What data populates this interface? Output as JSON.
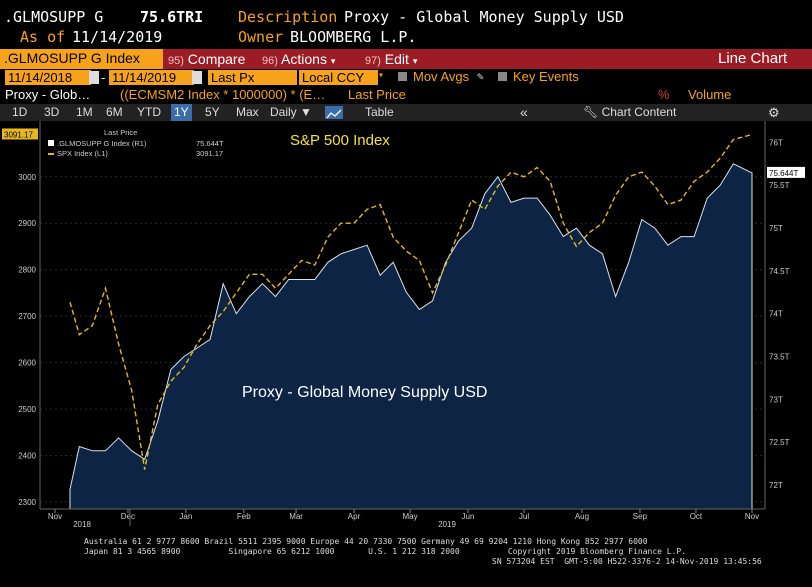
{
  "header": {
    "ticker": ".GLMOSUPP G",
    "value": "75.6TRI",
    "as_of_label": "As of",
    "as_of_date": "11/14/2019",
    "description_label": "Description",
    "description": "Proxy - Global Money Supply USD",
    "owner_label": "Owner",
    "owner": "BLOOMBERG L.P."
  },
  "menubar": {
    "index_label": ".GLMOSUPP G Index",
    "compare_num": "95)",
    "compare_label": "Compare",
    "actions_num": "96)",
    "actions_label": "Actions",
    "edit_num": "97)",
    "edit_label": "Edit",
    "chart_type": "Line Chart",
    "colors": {
      "bar": "#9b1c24",
      "accent": "#f7a21b"
    }
  },
  "controls": {
    "start_date": "11/14/2018",
    "end_date": "11/14/2019",
    "price_field": "Last Px",
    "currency": "Local CCY",
    "mov_avgs": "Mov Avgs",
    "key_events": "Key Events",
    "series_name": "Proxy - Glob…",
    "formula": "((ECMSM2 Index * 1000000) * (E…",
    "last_price": "Last Price",
    "percent": "%",
    "volume": "Volume"
  },
  "toolbar": {
    "periods": [
      "1D",
      "3D",
      "1M",
      "6M",
      "YTD",
      "1Y",
      "5Y",
      "Max"
    ],
    "selected_period": "1Y",
    "frequency": "Daily",
    "table_label": "Table",
    "chart_content": "Chart Content"
  },
  "legend": {
    "header": "Last Price",
    "row1_name": ".GLMOSUPP G Index (R1)",
    "row1_value": "75.644T",
    "row2_name": "SPX Index (L1)",
    "row2_value": "3091.17"
  },
  "footer": {
    "line1": "Australia 61 2 9777 8600 Brazil 5511 2395 9000 Europe 44 20 7330 7500 Germany 49 69 9204 1210 Hong Kong 852 2977 6000",
    "line2": "Japan 81 3 4565 8900          Singapore 65 6212 1000       U.S. 1 212 318 2000          Copyright 2019 Bloomberg Finance L.P.",
    "line3": "SN 573204 EST  GMT-5:00 H522-3376-2 14-Nov-2019 13:45:56"
  },
  "chart_data": {
    "type": "area",
    "annotations": [
      "S&P 500 Index",
      "Proxy - Global Money Supply USD"
    ],
    "x_tick_labels": [
      "Nov",
      "Dec",
      "Jan",
      "Feb",
      "Mar",
      "Apr",
      "May",
      "Jun",
      "Jul",
      "Aug",
      "Sep",
      "Oct",
      "Nov"
    ],
    "year_labels": [
      "2018",
      "2019"
    ],
    "left_axis": {
      "ticks": [
        2300,
        2400,
        2500,
        2600,
        2700,
        2800,
        2900,
        3000
      ],
      "range": [
        2285,
        3120
      ],
      "last_label": "3091.17"
    },
    "right_axis": {
      "ticks_label": [
        "72T",
        "72.5T",
        "73T",
        "73.5T",
        "74T",
        "74.5T",
        "75T",
        "75.5T",
        "76T"
      ],
      "ticks": [
        72,
        72.5,
        73,
        73.5,
        74,
        74.5,
        75,
        75.5,
        76
      ],
      "range": [
        71.72,
        76.25
      ],
      "last_label": "75.644T"
    },
    "series": [
      {
        "name": "SPX Index (L1)",
        "axis": "left",
        "color": "#e6b820",
        "style": "dashed",
        "x": [
          "2018-11-14",
          "2018-11-19",
          "2018-11-26",
          "2018-12-03",
          "2018-12-10",
          "2018-12-17",
          "2018-12-24",
          "2018-12-31",
          "2019-01-07",
          "2019-01-14",
          "2019-01-21",
          "2019-01-28",
          "2019-02-04",
          "2019-02-11",
          "2019-02-18",
          "2019-02-25",
          "2019-03-04",
          "2019-03-11",
          "2019-03-18",
          "2019-03-25",
          "2019-04-01",
          "2019-04-08",
          "2019-04-15",
          "2019-04-22",
          "2019-04-29",
          "2019-05-06",
          "2019-05-13",
          "2019-05-20",
          "2019-05-27",
          "2019-06-03",
          "2019-06-10",
          "2019-06-17",
          "2019-06-24",
          "2019-07-01",
          "2019-07-08",
          "2019-07-15",
          "2019-07-22",
          "2019-07-29",
          "2019-08-05",
          "2019-08-12",
          "2019-08-19",
          "2019-08-26",
          "2019-09-02",
          "2019-09-09",
          "2019-09-16",
          "2019-09-23",
          "2019-09-30",
          "2019-10-07",
          "2019-10-14",
          "2019-10-21",
          "2019-10-28",
          "2019-11-04",
          "2019-11-14"
        ],
        "values": [
          2730,
          2660,
          2680,
          2760,
          2640,
          2540,
          2370,
          2510,
          2560,
          2590,
          2640,
          2680,
          2710,
          2750,
          2790,
          2790,
          2760,
          2790,
          2820,
          2810,
          2870,
          2900,
          2900,
          2930,
          2940,
          2870,
          2840,
          2820,
          2750,
          2810,
          2880,
          2950,
          2930,
          2980,
          3010,
          3000,
          3020,
          2990,
          2900,
          2850,
          2880,
          2900,
          2960,
          3000,
          3010,
          2980,
          2940,
          2950,
          2990,
          3010,
          3040,
          3080,
          3091
        ]
      },
      {
        "name": ".GLMOSUPP G Index (R1)",
        "axis": "right",
        "color": "#0e2444",
        "style": "area",
        "x": [
          "2018-11-14",
          "2018-11-19",
          "2018-11-26",
          "2018-12-03",
          "2018-12-10",
          "2018-12-17",
          "2018-12-24",
          "2018-12-31",
          "2019-01-07",
          "2019-01-14",
          "2019-01-21",
          "2019-01-28",
          "2019-02-04",
          "2019-02-11",
          "2019-02-18",
          "2019-02-25",
          "2019-03-04",
          "2019-03-11",
          "2019-03-18",
          "2019-03-25",
          "2019-04-01",
          "2019-04-08",
          "2019-04-15",
          "2019-04-22",
          "2019-04-29",
          "2019-05-06",
          "2019-05-13",
          "2019-05-20",
          "2019-05-27",
          "2019-06-03",
          "2019-06-10",
          "2019-06-17",
          "2019-06-24",
          "2019-07-01",
          "2019-07-08",
          "2019-07-15",
          "2019-07-22",
          "2019-07-29",
          "2019-08-05",
          "2019-08-12",
          "2019-08-19",
          "2019-08-26",
          "2019-09-02",
          "2019-09-09",
          "2019-09-16",
          "2019-09-23",
          "2019-09-30",
          "2019-10-07",
          "2019-10-14",
          "2019-10-21",
          "2019-10-28",
          "2019-11-04",
          "2019-11-14"
        ],
        "values": [
          71.95,
          72.45,
          72.4,
          72.4,
          72.55,
          72.4,
          72.3,
          72.75,
          73.35,
          73.5,
          73.6,
          73.7,
          74.35,
          74.0,
          74.2,
          74.35,
          74.2,
          74.4,
          74.4,
          74.4,
          74.6,
          74.7,
          74.75,
          74.8,
          74.45,
          74.6,
          74.25,
          74.05,
          74.15,
          74.6,
          74.85,
          75.0,
          75.4,
          75.6,
          75.3,
          75.35,
          75.35,
          75.15,
          74.9,
          75.0,
          74.8,
          74.7,
          74.2,
          74.6,
          75.1,
          75.0,
          74.8,
          74.9,
          74.9,
          75.35,
          75.5,
          75.75,
          75.644
        ]
      }
    ]
  }
}
